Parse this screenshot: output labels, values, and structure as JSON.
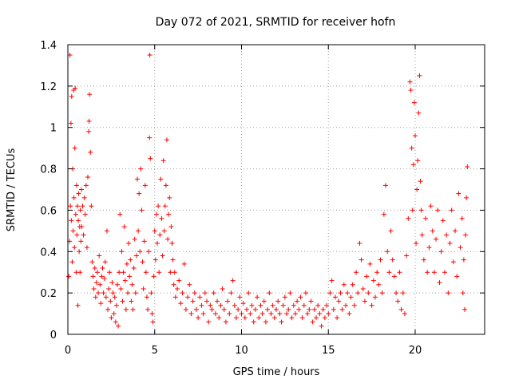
{
  "chart_data": {
    "type": "scatter",
    "title": "Day 072 of 2021, SRMTID for receiver hofn",
    "xlabel": "GPS time / hours",
    "ylabel": "SRMTID / TECUs",
    "xlim": [
      0,
      24
    ],
    "ylim": [
      0,
      1.4
    ],
    "xticks": [
      0,
      5,
      10,
      15,
      20
    ],
    "xtick_labels": [
      "0",
      "5",
      "10",
      "15",
      "20"
    ],
    "yticks": [
      0,
      0.2,
      0.4,
      0.6,
      0.8,
      1.0,
      1.2,
      1.4
    ],
    "ytick_labels": [
      "0",
      "0.2",
      "0.4",
      "0.6",
      "0.8",
      "1",
      "1.2",
      "1.4"
    ],
    "grid": true,
    "marker": "+",
    "marker_color": "#ff0000",
    "series": [
      {
        "name": "hofn",
        "points": [
          [
            0.05,
            0.28
          ],
          [
            0.1,
            0.45
          ],
          [
            0.12,
            1.35
          ],
          [
            0.15,
            0.62
          ],
          [
            0.18,
            1.02
          ],
          [
            0.2,
            0.55
          ],
          [
            0.22,
            1.15
          ],
          [
            0.25,
            0.35
          ],
          [
            0.28,
            0.8
          ],
          [
            0.3,
            0.5
          ],
          [
            0.33,
            1.18
          ],
          [
            0.35,
            0.66
          ],
          [
            0.38,
            0.42
          ],
          [
            0.4,
            0.9
          ],
          [
            0.42,
            1.19
          ],
          [
            0.45,
            0.58
          ],
          [
            0.48,
            0.3
          ],
          [
            0.5,
            0.72
          ],
          [
            0.52,
            0.48
          ],
          [
            0.55,
            0.62
          ],
          [
            0.58,
            0.14
          ],
          [
            0.6,
            0.55
          ],
          [
            0.62,
            0.68
          ],
          [
            0.65,
            0.4
          ],
          [
            0.68,
            0.52
          ],
          [
            0.7,
            0.3
          ],
          [
            0.72,
            0.6
          ],
          [
            0.75,
            0.45
          ],
          [
            0.78,
            0.7
          ],
          [
            0.8,
            0.52
          ],
          [
            0.85,
            0.62
          ],
          [
            0.9,
            0.48
          ],
          [
            0.95,
            0.66
          ],
          [
            1.0,
            0.58
          ],
          [
            1.05,
            0.72
          ],
          [
            1.1,
            0.42
          ],
          [
            1.15,
            0.76
          ],
          [
            1.2,
            0.98
          ],
          [
            1.22,
            1.03
          ],
          [
            1.25,
            1.16
          ],
          [
            1.3,
            0.88
          ],
          [
            1.35,
            0.62
          ],
          [
            1.4,
            0.35
          ],
          [
            1.45,
            0.28
          ],
          [
            1.5,
            0.22
          ],
          [
            1.55,
            0.32
          ],
          [
            1.6,
            0.18
          ],
          [
            1.65,
            0.25
          ],
          [
            1.7,
            0.3
          ],
          [
            1.75,
            0.2
          ],
          [
            1.8,
            0.38
          ],
          [
            1.85,
            0.24
          ],
          [
            1.9,
            0.15
          ],
          [
            1.95,
            0.28
          ],
          [
            2.0,
            0.32
          ],
          [
            2.05,
            0.2
          ],
          [
            2.1,
            0.27
          ],
          [
            2.15,
            0.35
          ],
          [
            2.2,
            0.18
          ],
          [
            2.25,
            0.5
          ],
          [
            2.3,
            0.12
          ],
          [
            2.35,
            0.22
          ],
          [
            2.4,
            0.3
          ],
          [
            2.45,
            0.16
          ],
          [
            2.5,
            0.08
          ],
          [
            2.55,
            0.25
          ],
          [
            2.6,
            0.2
          ],
          [
            2.65,
            0.1
          ],
          [
            2.7,
            0.18
          ],
          [
            2.75,
            0.06
          ],
          [
            2.8,
            0.14
          ],
          [
            2.85,
            0.24
          ],
          [
            2.9,
            0.04
          ],
          [
            2.95,
            0.3
          ],
          [
            3.0,
            0.58
          ],
          [
            3.05,
            0.22
          ],
          [
            3.1,
            0.4
          ],
          [
            3.15,
            0.16
          ],
          [
            3.2,
            0.3
          ],
          [
            3.25,
            0.52
          ],
          [
            3.3,
            0.26
          ],
          [
            3.35,
            0.12
          ],
          [
            3.4,
            0.34
          ],
          [
            3.45,
            0.2
          ],
          [
            3.5,
            0.44
          ],
          [
            3.55,
            0.28
          ],
          [
            3.6,
            0.36
          ],
          [
            3.65,
            0.16
          ],
          [
            3.7,
            0.24
          ],
          [
            3.75,
            0.12
          ],
          [
            3.8,
            0.32
          ],
          [
            3.85,
            0.46
          ],
          [
            3.9,
            0.2
          ],
          [
            3.95,
            0.38
          ],
          [
            4.0,
            0.75
          ],
          [
            4.05,
            0.5
          ],
          [
            4.1,
            0.68
          ],
          [
            4.15,
            0.4
          ],
          [
            4.2,
            0.8
          ],
          [
            4.25,
            0.6
          ],
          [
            4.3,
            0.35
          ],
          [
            4.35,
            0.22
          ],
          [
            4.4,
            0.45
          ],
          [
            4.45,
            0.72
          ],
          [
            4.5,
            0.3
          ],
          [
            4.55,
            0.18
          ],
          [
            4.6,
            0.12
          ],
          [
            4.65,
            0.4
          ],
          [
            4.7,
            0.95
          ],
          [
            4.72,
            1.35
          ],
          [
            4.75,
            0.85
          ],
          [
            4.8,
            0.2
          ],
          [
            4.85,
            0.1
          ],
          [
            4.9,
            0.06
          ],
          [
            4.95,
            0.28
          ],
          [
            5.0,
            0.5
          ],
          [
            5.05,
            0.36
          ],
          [
            5.1,
            0.58
          ],
          [
            5.15,
            0.44
          ],
          [
            5.2,
            0.62
          ],
          [
            5.25,
            0.3
          ],
          [
            5.3,
            0.48
          ],
          [
            5.35,
            0.75
          ],
          [
            5.4,
            0.56
          ],
          [
            5.45,
            0.38
          ],
          [
            5.5,
            0.84
          ],
          [
            5.55,
            0.5
          ],
          [
            5.6,
            0.62
          ],
          [
            5.65,
            0.72
          ],
          [
            5.7,
            0.94
          ],
          [
            5.75,
            0.46
          ],
          [
            5.8,
            0.58
          ],
          [
            5.85,
            0.66
          ],
          [
            5.9,
            0.3
          ],
          [
            5.95,
            0.52
          ],
          [
            6.0,
            0.44
          ],
          [
            6.05,
            0.36
          ],
          [
            6.1,
            0.24
          ],
          [
            6.15,
            0.3
          ],
          [
            6.2,
            0.18
          ],
          [
            6.3,
            0.22
          ],
          [
            6.4,
            0.26
          ],
          [
            6.5,
            0.15
          ],
          [
            6.6,
            0.2
          ],
          [
            6.7,
            0.34
          ],
          [
            6.8,
            0.12
          ],
          [
            6.9,
            0.18
          ],
          [
            7.0,
            0.24
          ],
          [
            7.1,
            0.1
          ],
          [
            7.2,
            0.16
          ],
          [
            7.3,
            0.2
          ],
          [
            7.4,
            0.12
          ],
          [
            7.5,
            0.08
          ],
          [
            7.6,
            0.18
          ],
          [
            7.7,
            0.14
          ],
          [
            7.8,
            0.1
          ],
          [
            7.9,
            0.2
          ],
          [
            8.0,
            0.16
          ],
          [
            8.1,
            0.06
          ],
          [
            8.2,
            0.14
          ],
          [
            8.3,
            0.12
          ],
          [
            8.4,
            0.2
          ],
          [
            8.5,
            0.1
          ],
          [
            8.6,
            0.16
          ],
          [
            8.7,
            0.08
          ],
          [
            8.8,
            0.14
          ],
          [
            8.9,
            0.22
          ],
          [
            9.0,
            0.12
          ],
          [
            9.1,
            0.06
          ],
          [
            9.2,
            0.16
          ],
          [
            9.3,
            0.1
          ],
          [
            9.4,
            0.2
          ],
          [
            9.5,
            0.26
          ],
          [
            9.6,
            0.14
          ],
          [
            9.7,
            0.08
          ],
          [
            9.8,
            0.12
          ],
          [
            9.9,
            0.18
          ],
          [
            10.0,
            0.1
          ],
          [
            10.1,
            0.15
          ],
          [
            10.2,
            0.08
          ],
          [
            10.3,
            0.12
          ],
          [
            10.4,
            0.2
          ],
          [
            10.5,
            0.1
          ],
          [
            10.6,
            0.14
          ],
          [
            10.7,
            0.06
          ],
          [
            10.8,
            0.12
          ],
          [
            10.9,
            0.18
          ],
          [
            11.0,
            0.08
          ],
          [
            11.1,
            0.14
          ],
          [
            11.2,
            0.1
          ],
          [
            11.3,
            0.16
          ],
          [
            11.4,
            0.06
          ],
          [
            11.5,
            0.12
          ],
          [
            11.6,
            0.2
          ],
          [
            11.7,
            0.1
          ],
          [
            11.8,
            0.14
          ],
          [
            11.9,
            0.08
          ],
          [
            12.0,
            0.12
          ],
          [
            12.1,
            0.16
          ],
          [
            12.2,
            0.1
          ],
          [
            12.3,
            0.06
          ],
          [
            12.4,
            0.14
          ],
          [
            12.5,
            0.18
          ],
          [
            12.6,
            0.1
          ],
          [
            12.7,
            0.12
          ],
          [
            12.8,
            0.2
          ],
          [
            12.9,
            0.08
          ],
          [
            13.0,
            0.14
          ],
          [
            13.1,
            0.1
          ],
          [
            13.2,
            0.16
          ],
          [
            13.3,
            0.12
          ],
          [
            13.4,
            0.18
          ],
          [
            13.5,
            0.08
          ],
          [
            13.6,
            0.14
          ],
          [
            13.7,
            0.2
          ],
          [
            13.8,
            0.1
          ],
          [
            13.9,
            0.12
          ],
          [
            14.0,
            0.16
          ],
          [
            14.1,
            0.06
          ],
          [
            14.2,
            0.12
          ],
          [
            14.3,
            0.08
          ],
          [
            14.4,
            0.14
          ],
          [
            14.5,
            0.1
          ],
          [
            14.6,
            0.04
          ],
          [
            14.7,
            0.12
          ],
          [
            14.8,
            0.08
          ],
          [
            14.9,
            0.14
          ],
          [
            15.0,
            0.1
          ],
          [
            15.1,
            0.2
          ],
          [
            15.2,
            0.26
          ],
          [
            15.3,
            0.12
          ],
          [
            15.4,
            0.18
          ],
          [
            15.5,
            0.08
          ],
          [
            15.6,
            0.16
          ],
          [
            15.7,
            0.2
          ],
          [
            15.8,
            0.12
          ],
          [
            15.9,
            0.24
          ],
          [
            16.0,
            0.14
          ],
          [
            16.1,
            0.2
          ],
          [
            16.2,
            0.1
          ],
          [
            16.3,
            0.18
          ],
          [
            16.4,
            0.24
          ],
          [
            16.5,
            0.14
          ],
          [
            16.6,
            0.3
          ],
          [
            16.7,
            0.2
          ],
          [
            16.8,
            0.44
          ],
          [
            16.9,
            0.36
          ],
          [
            17.0,
            0.22
          ],
          [
            17.1,
            0.16
          ],
          [
            17.2,
            0.28
          ],
          [
            17.3,
            0.2
          ],
          [
            17.4,
            0.34
          ],
          [
            17.5,
            0.14
          ],
          [
            17.6,
            0.26
          ],
          [
            17.7,
            0.18
          ],
          [
            17.8,
            0.3
          ],
          [
            17.9,
            0.24
          ],
          [
            18.0,
            0.36
          ],
          [
            18.1,
            0.2
          ],
          [
            18.2,
            0.58
          ],
          [
            18.3,
            0.72
          ],
          [
            18.4,
            0.4
          ],
          [
            18.5,
            0.3
          ],
          [
            18.6,
            0.5
          ],
          [
            18.7,
            0.36
          ],
          [
            18.8,
            0.28
          ],
          [
            18.9,
            0.2
          ],
          [
            19.0,
            0.16
          ],
          [
            19.1,
            0.3
          ],
          [
            19.2,
            0.12
          ],
          [
            19.3,
            0.2
          ],
          [
            19.4,
            0.1
          ],
          [
            19.5,
            0.38
          ],
          [
            19.6,
            0.56
          ],
          [
            19.7,
            1.22
          ],
          [
            19.75,
            1.18
          ],
          [
            19.8,
            0.9
          ],
          [
            19.85,
            0.6
          ],
          [
            19.9,
            0.82
          ],
          [
            19.95,
            1.12
          ],
          [
            20.0,
            0.96
          ],
          [
            20.05,
            0.44
          ],
          [
            20.1,
            0.7
          ],
          [
            20.15,
            0.84
          ],
          [
            20.2,
            1.07
          ],
          [
            20.25,
            1.25
          ],
          [
            20.3,
            0.74
          ],
          [
            20.35,
            0.6
          ],
          [
            20.4,
            0.48
          ],
          [
            20.5,
            0.36
          ],
          [
            20.6,
            0.56
          ],
          [
            20.7,
            0.3
          ],
          [
            20.8,
            0.42
          ],
          [
            20.9,
            0.62
          ],
          [
            21.0,
            0.5
          ],
          [
            21.1,
            0.3
          ],
          [
            21.2,
            0.46
          ],
          [
            21.3,
            0.6
          ],
          [
            21.4,
            0.25
          ],
          [
            21.5,
            0.4
          ],
          [
            21.6,
            0.55
          ],
          [
            21.7,
            0.3
          ],
          [
            21.8,
            0.48
          ],
          [
            21.9,
            0.2
          ],
          [
            22.0,
            0.44
          ],
          [
            22.1,
            0.6
          ],
          [
            22.2,
            0.35
          ],
          [
            22.3,
            0.5
          ],
          [
            22.4,
            0.28
          ],
          [
            22.5,
            0.68
          ],
          [
            22.6,
            0.42
          ],
          [
            22.7,
            0.56
          ],
          [
            22.75,
            0.2
          ],
          [
            22.8,
            0.36
          ],
          [
            22.85,
            0.12
          ],
          [
            22.9,
            0.48
          ],
          [
            22.95,
            0.66
          ],
          [
            23.0,
            0.81
          ]
        ]
      }
    ]
  }
}
